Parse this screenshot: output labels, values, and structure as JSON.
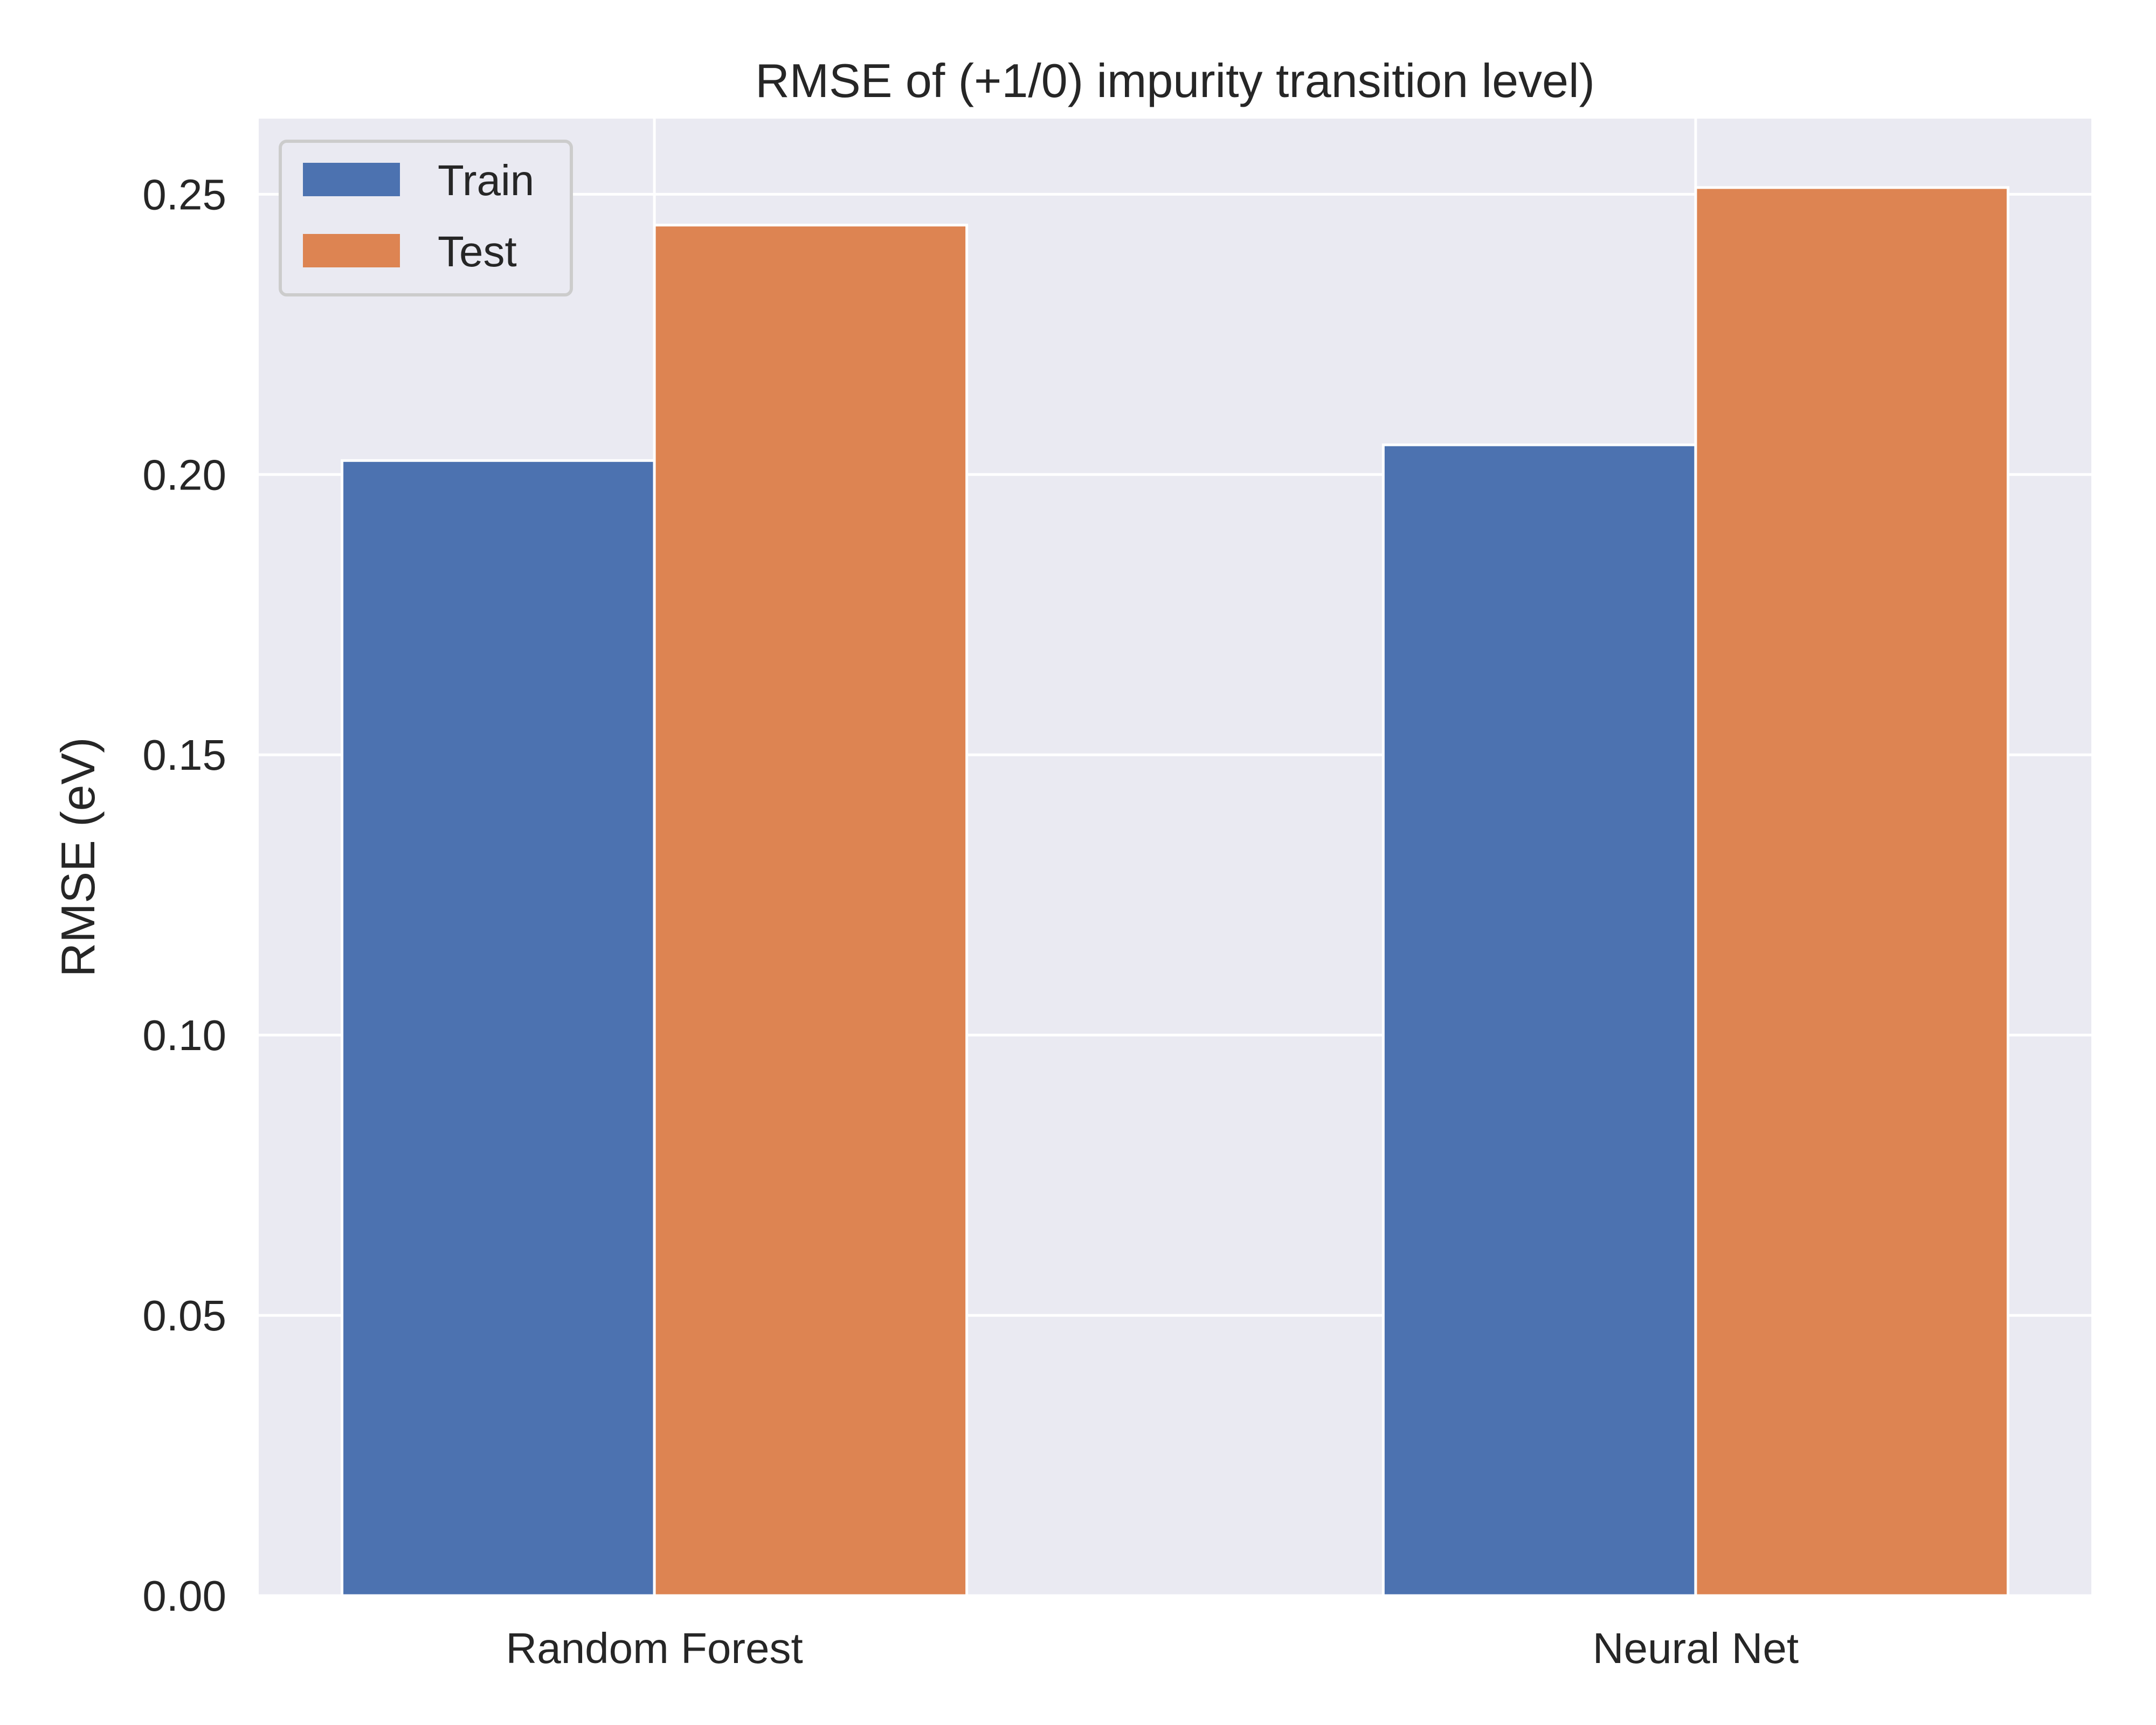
{
  "chart_data": {
    "type": "bar",
    "title": "RMSE of (+1/0) impurity transition level)",
    "xlabel": "",
    "ylabel": "RMSE (eV)",
    "categories": [
      "Random Forest",
      "Neural Net"
    ],
    "series": [
      {
        "name": "Train",
        "values": [
          0.2025,
          0.2053
        ],
        "color": "#4c72b0"
      },
      {
        "name": "Test",
        "values": [
          0.2445,
          0.2512
        ],
        "color": "#dd8452"
      }
    ],
    "ylim": [
      0,
      0.2635
    ],
    "yticks": [
      0.0,
      0.05,
      0.1,
      0.15,
      0.2,
      0.25
    ],
    "ytick_labels": [
      "0.00",
      "0.05",
      "0.10",
      "0.15",
      "0.20",
      "0.25"
    ],
    "grid": true,
    "legend_position": "top-left",
    "background_color": "#eaeaf2",
    "grid_color": "#ffffff"
  }
}
